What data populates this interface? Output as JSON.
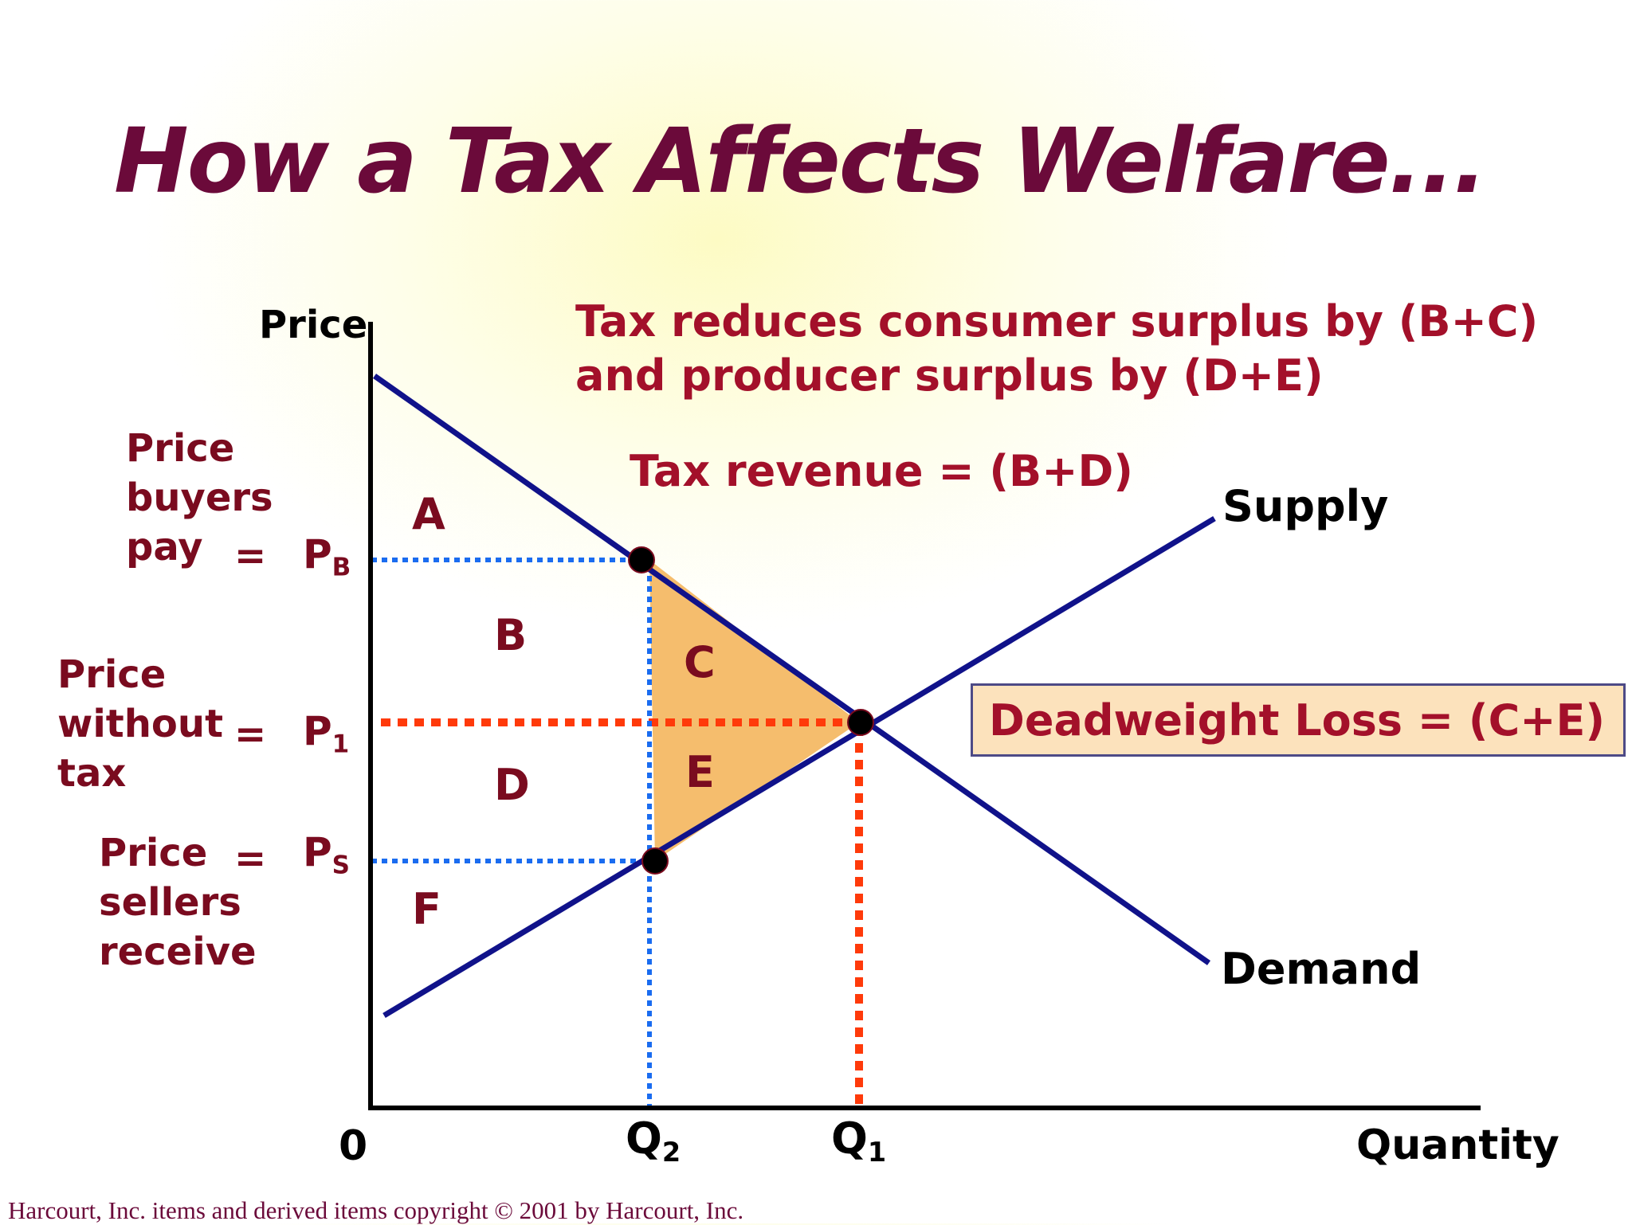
{
  "title": "How a Tax Affects Welfare...",
  "axes": {
    "y_label": "Price",
    "x_label": "Quantity",
    "origin": "0"
  },
  "curves": {
    "supply": "Supply",
    "demand": "Demand"
  },
  "prices": {
    "pb_label": "Price\nbuyers\npay",
    "pb_symbol": "P",
    "pb_sub": "B",
    "p1_label": "Price\nwithout\ntax",
    "p1_symbol": "P",
    "p1_sub": "1",
    "ps_label": "Price\nsellers\nreceive",
    "ps_symbol": "P",
    "ps_sub": "S",
    "equals": "="
  },
  "quantities": {
    "q2_symbol": "Q",
    "q2_sub": "2",
    "q1_symbol": "Q",
    "q1_sub": "1"
  },
  "areas": {
    "a": "A",
    "b": "B",
    "c": "C",
    "d": "D",
    "e": "E",
    "f": "F"
  },
  "notes": {
    "surplus_line1": "Tax reduces consumer surplus by (B+C)",
    "surplus_line2": "and producer surplus by (D+E)",
    "revenue": "Tax revenue = (B+D)",
    "deadweight": "Deadweight Loss = (C+E)"
  },
  "copyright": "Harcourt, Inc. items and derived items copyright © 2001 by Harcourt, Inc.",
  "colors": {
    "title": "#6b0a3a",
    "label": "#7a0b1f",
    "curve": "#10128a",
    "p1_guide": "#ff3a0a",
    "price_guides": "#1a6cf0",
    "deadweight_fill": "#f5bd6d",
    "box_fill": "#fce2bc",
    "box_text": "#a3102a"
  }
}
